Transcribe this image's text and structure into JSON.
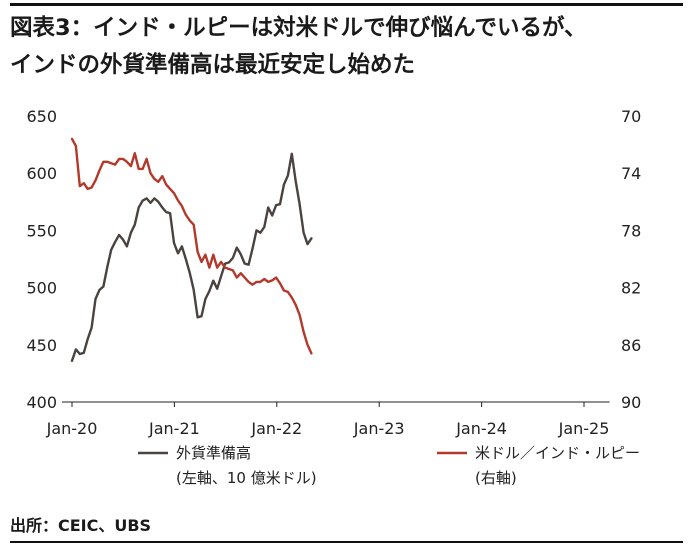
{
  "title_lines": [
    "図表3：インド・ルピーは対米ドルで伸び悩んでいるが、",
    "インドの外貨準備高は最近安定し始めた"
  ],
  "source": "出所：CEIC、UBS",
  "chart_data": {
    "type": "line",
    "title": "図表3：インド・ルピーは対米ドルで伸び悩んでいるが、インドの外貨準備高は最近安定し始めた",
    "x_ticks": [
      "Jan-20",
      "Jan-21",
      "Jan-22",
      "Jan-23",
      "Jan-24",
      "Jan-25"
    ],
    "left_axis": {
      "ylim": [
        400,
        650
      ],
      "ticks": [
        "400",
        "450",
        "500",
        "550",
        "600",
        "650"
      ]
    },
    "right_axis": {
      "ylim": [
        70,
        90
      ],
      "inverted": true,
      "ticks": [
        "70",
        "74",
        "78",
        "82",
        "86",
        "90"
      ]
    },
    "grid": false,
    "legend_position": "bottom",
    "series": [
      {
        "name": "外貨準備高",
        "name_sub": "(左軸、10 億米ドル)",
        "axis": "left",
        "color": "#4a4340",
        "start": "2020-01",
        "step_days": 14,
        "values": [
          436,
          446,
          442,
          443,
          455,
          465,
          490,
          498,
          501,
          518,
          533,
          540,
          546,
          542,
          536,
          548,
          555,
          570,
          576,
          578,
          574,
          578,
          575,
          570,
          566,
          565,
          539,
          530,
          536,
          525,
          513,
          498,
          474,
          475,
          490,
          497,
          506,
          499,
          510,
          521,
          522,
          526,
          535,
          529,
          521,
          520,
          534,
          550,
          548,
          553,
          570,
          563,
          572,
          573,
          590,
          598,
          617,
          593,
          573,
          548,
          538,
          543
        ]
      },
      {
        "name": "米ドル／インド・ルピー",
        "name_sub": "(右軸)",
        "axis": "right",
        "color": "#b3392b",
        "start": "2020-01",
        "step_days": 14,
        "values": [
          71.6,
          72.1,
          74.9,
          74.7,
          75.1,
          75.0,
          74.5,
          73.8,
          73.2,
          73.2,
          73.3,
          73.4,
          73.0,
          73.0,
          73.2,
          73.5,
          72.6,
          73.7,
          73.7,
          73.0,
          74.0,
          74.4,
          74.6,
          74.2,
          74.8,
          75.1,
          75.4,
          75.9,
          76.3,
          76.9,
          77.3,
          77.6,
          79.5,
          80.2,
          79.7,
          80.6,
          79.7,
          80.6,
          80.2,
          80.6,
          80.7,
          80.8,
          81.3,
          81.0,
          81.3,
          81.6,
          81.8,
          81.6,
          81.6,
          81.4,
          81.6,
          81.5,
          81.3,
          81.7,
          82.2,
          82.3,
          82.7,
          83.2,
          83.9,
          85.1,
          86.0,
          86.6
        ]
      }
    ]
  }
}
